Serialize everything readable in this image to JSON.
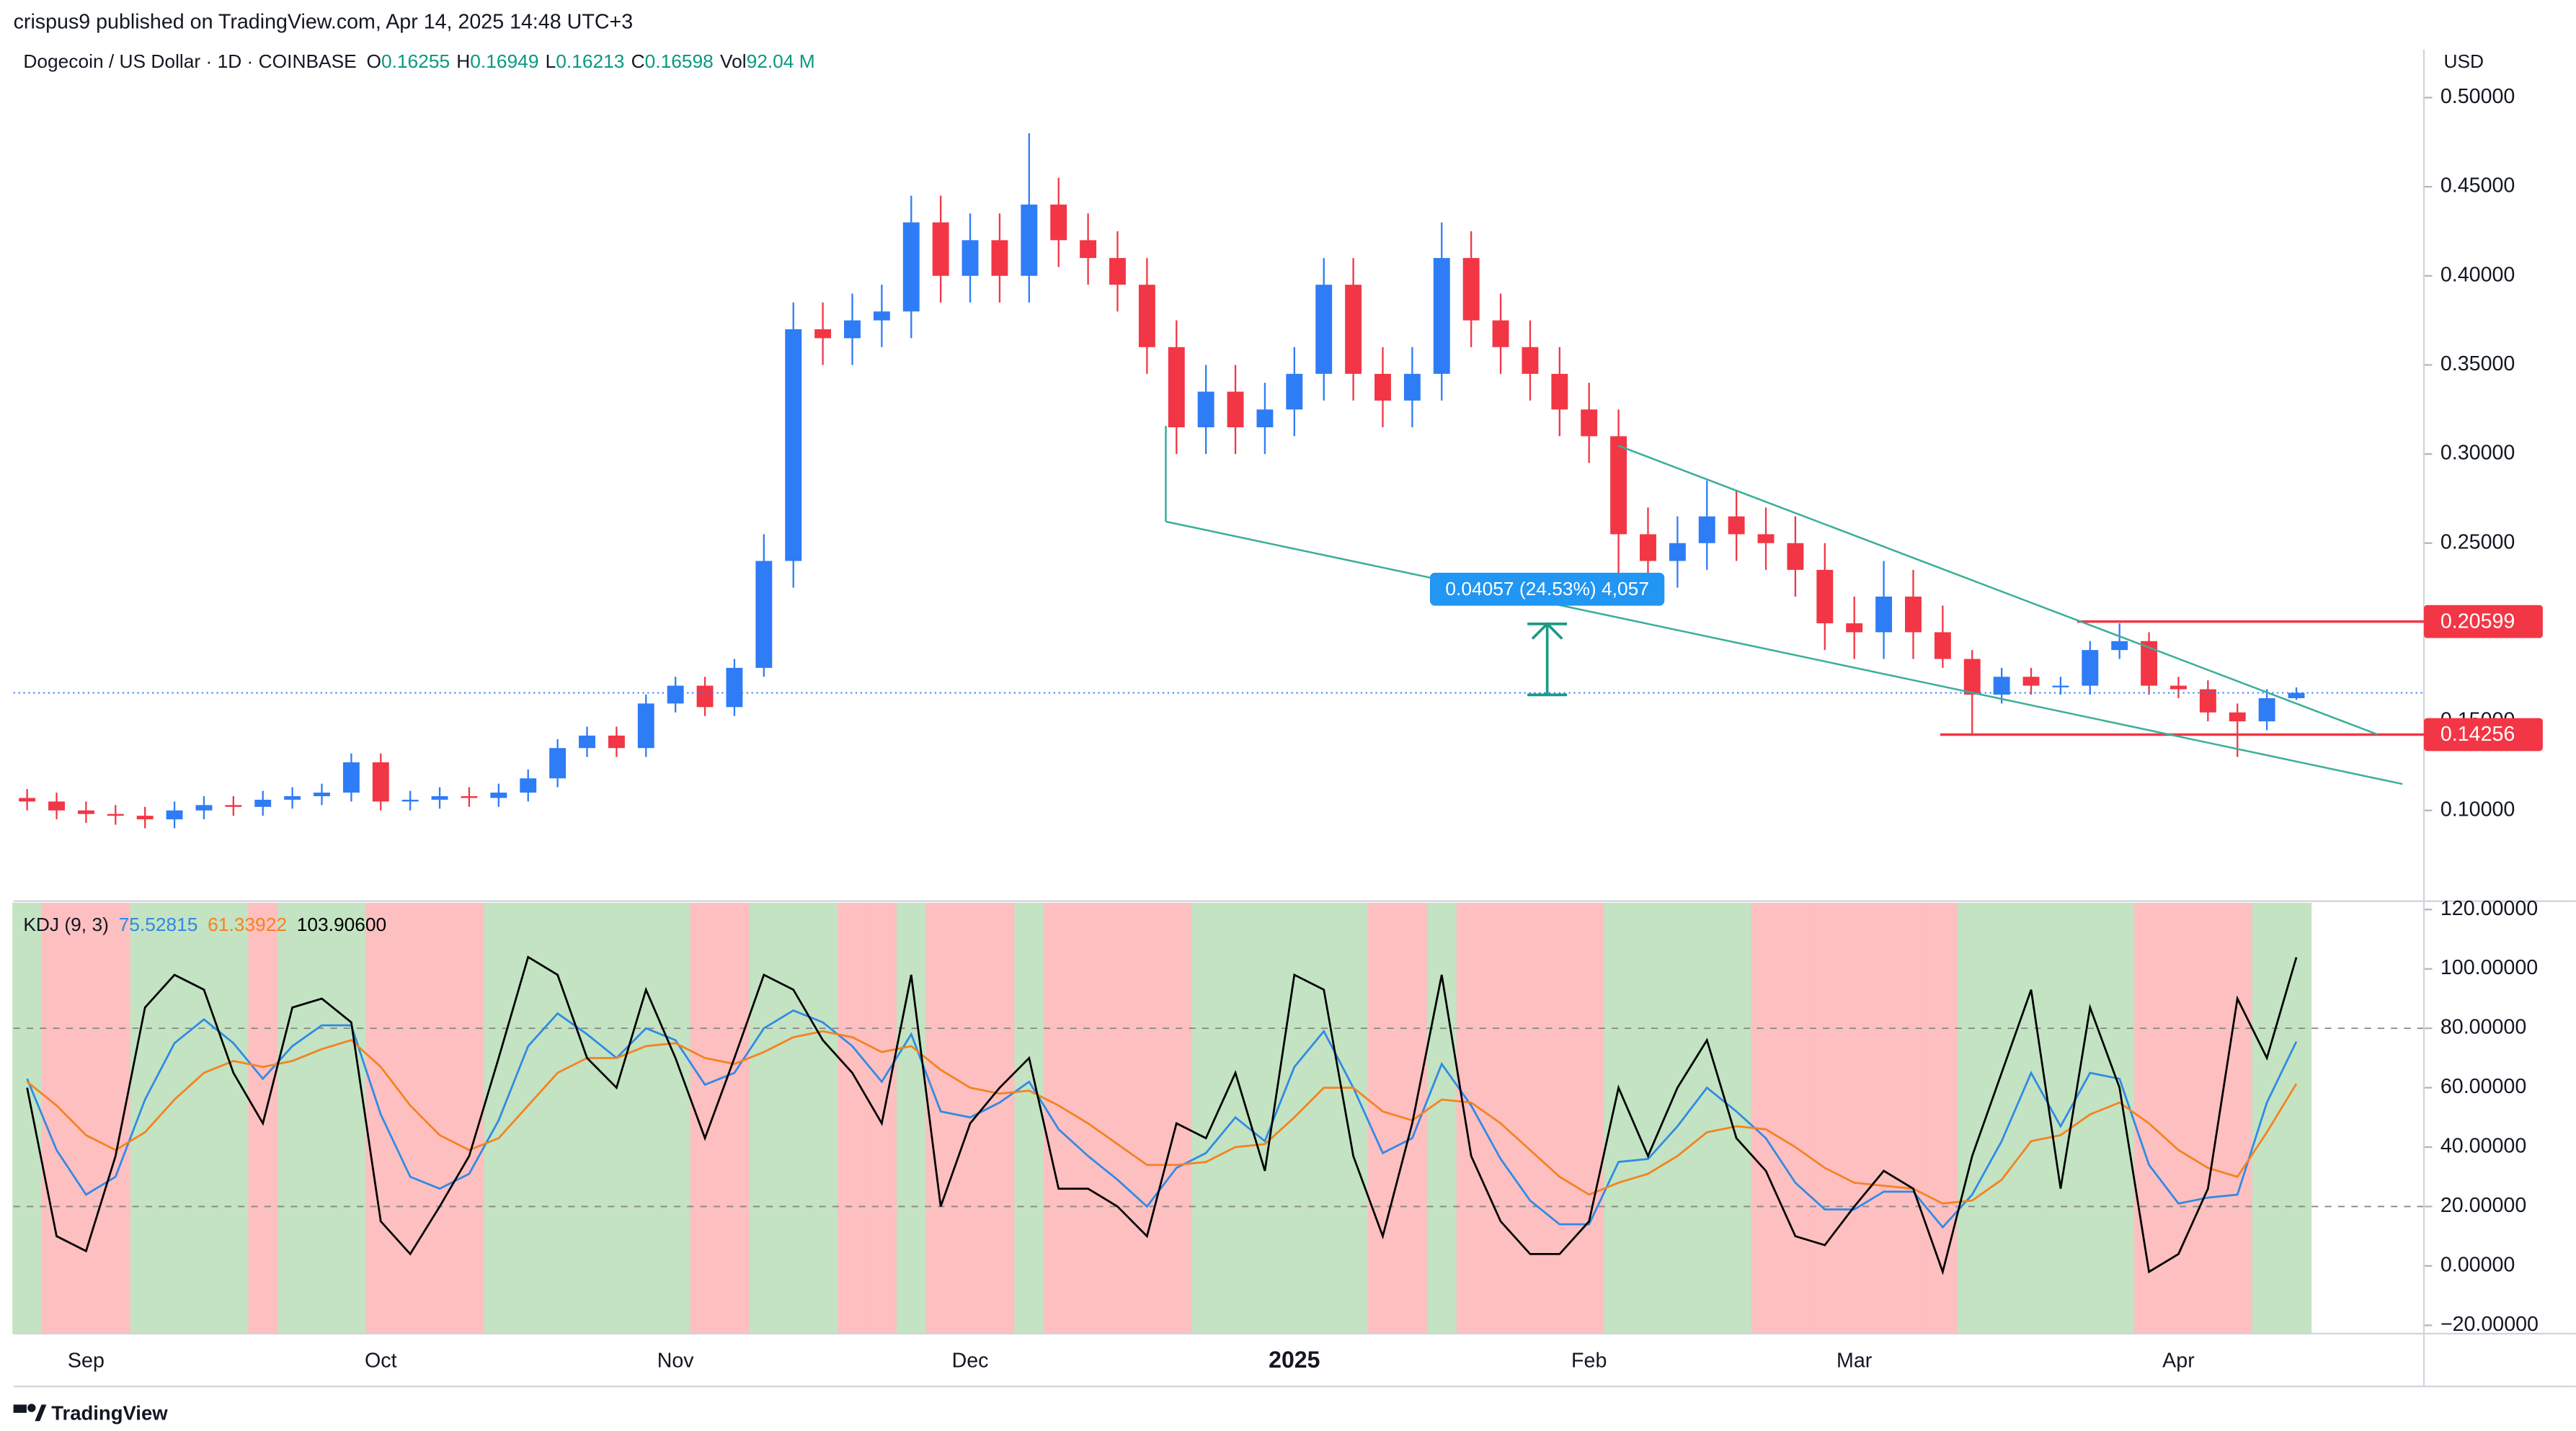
{
  "header": {
    "publisher": "crispus9 published on TradingView.com, Apr 14, 2025 14:48 UTC+3",
    "footer": "TradingView"
  },
  "chart_data": [
    {
      "type": "candlestick",
      "title": "Dogecoin / US Dollar · 1D · COINBASE",
      "currency": "USD",
      "ohlc": [
        {
          "label": "O",
          "value": 0.16255
        },
        {
          "label": "H",
          "value": 0.16949
        },
        {
          "label": "L",
          "value": 0.16213
        },
        {
          "label": "C",
          "value": 0.16598
        },
        {
          "label": "Vol",
          "value": "92.04 M"
        }
      ],
      "categories": [
        null,
        null,
        "Sep",
        null,
        null,
        null,
        null,
        null,
        null,
        null,
        null,
        null,
        "Oct",
        null,
        null,
        null,
        null,
        null,
        null,
        null,
        null,
        null,
        "Nov",
        null,
        null,
        null,
        null,
        null,
        null,
        null,
        null,
        null,
        "Dec",
        null,
        null,
        null,
        null,
        null,
        null,
        null,
        null,
        null,
        null,
        "2025",
        null,
        null,
        null,
        null,
        null,
        null,
        null,
        null,
        null,
        "Feb",
        null,
        null,
        null,
        null,
        null,
        null,
        null,
        null,
        "Mar",
        null,
        null,
        null,
        null,
        null,
        null,
        null,
        null,
        null,
        null,
        "Apr",
        null,
        null,
        null,
        null
      ],
      "open": [
        0.107,
        0.105,
        0.1,
        0.098,
        0.097,
        0.095,
        0.1,
        0.103,
        0.102,
        0.106,
        0.108,
        0.11,
        0.127,
        0.105,
        0.106,
        0.108,
        0.107,
        0.11,
        0.118,
        0.135,
        0.142,
        0.135,
        0.16,
        0.17,
        0.158,
        0.18,
        0.24,
        0.37,
        0.365,
        0.375,
        0.38,
        0.43,
        0.4,
        0.42,
        0.4,
        0.44,
        0.42,
        0.41,
        0.395,
        0.36,
        0.315,
        0.335,
        0.315,
        0.325,
        0.345,
        0.395,
        0.345,
        0.33,
        0.345,
        0.41,
        0.375,
        0.36,
        0.345,
        0.325,
        0.31,
        0.255,
        0.24,
        0.25,
        0.265,
        0.255,
        0.25,
        0.235,
        0.205,
        0.2,
        0.22,
        0.2,
        0.185,
        0.165,
        0.175,
        0.17,
        0.17,
        0.19,
        0.195,
        0.17,
        0.168,
        0.155,
        0.15,
        0.163
      ],
      "high": [
        0.112,
        0.11,
        0.105,
        0.103,
        0.102,
        0.105,
        0.108,
        0.108,
        0.111,
        0.113,
        0.115,
        0.132,
        0.132,
        0.111,
        0.113,
        0.113,
        0.115,
        0.123,
        0.14,
        0.147,
        0.147,
        0.165,
        0.175,
        0.175,
        0.185,
        0.255,
        0.385,
        0.385,
        0.39,
        0.395,
        0.445,
        0.445,
        0.435,
        0.435,
        0.48,
        0.455,
        0.435,
        0.425,
        0.41,
        0.375,
        0.35,
        0.35,
        0.34,
        0.36,
        0.41,
        0.41,
        0.36,
        0.36,
        0.43,
        0.425,
        0.39,
        0.375,
        0.36,
        0.34,
        0.325,
        0.27,
        0.265,
        0.285,
        0.28,
        0.27,
        0.265,
        0.25,
        0.22,
        0.24,
        0.235,
        0.215,
        0.19,
        0.18,
        0.18,
        0.175,
        0.195,
        0.205,
        0.2,
        0.175,
        0.173,
        0.16,
        0.168,
        0.169
      ],
      "low": [
        0.1,
        0.095,
        0.093,
        0.092,
        0.09,
        0.09,
        0.095,
        0.097,
        0.097,
        0.101,
        0.103,
        0.105,
        0.1,
        0.1,
        0.101,
        0.102,
        0.102,
        0.105,
        0.113,
        0.13,
        0.13,
        0.13,
        0.155,
        0.153,
        0.153,
        0.175,
        0.225,
        0.35,
        0.35,
        0.36,
        0.365,
        0.385,
        0.385,
        0.385,
        0.385,
        0.405,
        0.395,
        0.38,
        0.345,
        0.3,
        0.3,
        0.3,
        0.3,
        0.31,
        0.33,
        0.33,
        0.315,
        0.315,
        0.33,
        0.36,
        0.345,
        0.33,
        0.31,
        0.295,
        0.215,
        0.225,
        0.225,
        0.235,
        0.24,
        0.235,
        0.22,
        0.19,
        0.185,
        0.185,
        0.185,
        0.18,
        0.143,
        0.16,
        0.165,
        0.165,
        0.165,
        0.185,
        0.165,
        0.163,
        0.15,
        0.13,
        0.145,
        0.162
      ],
      "close": [
        0.105,
        0.1,
        0.098,
        0.097,
        0.095,
        0.1,
        0.103,
        0.102,
        0.106,
        0.108,
        0.11,
        0.127,
        0.105,
        0.106,
        0.108,
        0.107,
        0.11,
        0.118,
        0.135,
        0.142,
        0.135,
        0.16,
        0.17,
        0.158,
        0.18,
        0.24,
        0.37,
        0.365,
        0.375,
        0.38,
        0.43,
        0.4,
        0.42,
        0.4,
        0.44,
        0.42,
        0.41,
        0.395,
        0.36,
        0.315,
        0.335,
        0.315,
        0.325,
        0.345,
        0.395,
        0.345,
        0.33,
        0.345,
        0.41,
        0.375,
        0.36,
        0.345,
        0.325,
        0.31,
        0.255,
        0.24,
        0.25,
        0.265,
        0.255,
        0.25,
        0.235,
        0.205,
        0.2,
        0.22,
        0.2,
        0.185,
        0.165,
        0.175,
        0.17,
        0.17,
        0.19,
        0.195,
        0.17,
        0.168,
        0.155,
        0.15,
        0.163,
        0.166
      ],
      "up_color": "#2e7cf6",
      "down_color": "#f23645",
      "ylim": [
        0.05,
        0.527
      ],
      "yticks": [
        {
          "value": 0.1,
          "label": "0.10000"
        },
        {
          "value": 0.15,
          "label": "0.15000"
        },
        {
          "value": 0.2,
          "label": "0.20000"
        },
        {
          "value": 0.25,
          "label": "0.25000"
        },
        {
          "value": 0.3,
          "label": "0.30000"
        },
        {
          "value": 0.35,
          "label": "0.35000"
        },
        {
          "value": 0.4,
          "label": "0.40000"
        },
        {
          "value": 0.45,
          "label": "0.45000"
        },
        {
          "value": 0.5,
          "label": "0.50000"
        }
      ],
      "price_lines": [
        {
          "value": 0.20599,
          "color": "#f23645"
        },
        {
          "value": 0.14256,
          "color": "#f23645"
        }
      ],
      "annotation": "0.04057 (24.53%) 4,057"
    },
    {
      "type": "line",
      "title": "KDJ (9, 3)",
      "series": [
        {
          "color": "#2f8ae6",
          "values": [
            63,
            39,
            24,
            30,
            56,
            75,
            83,
            75,
            63,
            74,
            81,
            81,
            51,
            30,
            26,
            31,
            49,
            74,
            85,
            78,
            70,
            80,
            76,
            61,
            65,
            80,
            86,
            82,
            74,
            62,
            78,
            52,
            50,
            55,
            62,
            46,
            37,
            29,
            20,
            33,
            38,
            50,
            42,
            67,
            79,
            60,
            38,
            43,
            68,
            54,
            36,
            22,
            14,
            14,
            35,
            36,
            47,
            60,
            52,
            43,
            28,
            19,
            19,
            25,
            25,
            13,
            24,
            42,
            65,
            47,
            65,
            63,
            34,
            21,
            23,
            24,
            55,
            75.52815
          ]
        },
        {
          "color": "#f5821f",
          "values": [
            62,
            54,
            44,
            39,
            45,
            56,
            65,
            69,
            67,
            69,
            73,
            76,
            67,
            54,
            44,
            39,
            43,
            54,
            65,
            70,
            70,
            74,
            75,
            70,
            68,
            72,
            77,
            79,
            77,
            72,
            74,
            66,
            60,
            58,
            59,
            54,
            48,
            41,
            34,
            34,
            35,
            40,
            41,
            50,
            60,
            60,
            52,
            49,
            56,
            55,
            48,
            39,
            30,
            24,
            28,
            31,
            37,
            45,
            47,
            46,
            40,
            33,
            28,
            27,
            26,
            21,
            22,
            29,
            42,
            44,
            51,
            55,
            48,
            39,
            33,
            30,
            45,
            61.33922
          ]
        },
        {
          "color": "#000000",
          "legend_label": "103.90600",
          "values": [
            60,
            10,
            5,
            37,
            87,
            98,
            93,
            65,
            48,
            87,
            90,
            82,
            15,
            4,
            20,
            37,
            70,
            104,
            98,
            70,
            60,
            93,
            70,
            43,
            70,
            98,
            93,
            76,
            65,
            48,
            98,
            20,
            48,
            60,
            70,
            26,
            26,
            20,
            10,
            48,
            43,
            65,
            32,
            98,
            93,
            37,
            10,
            48,
            98,
            37,
            15,
            4,
            4,
            15,
            60,
            37,
            60,
            76,
            43,
            32,
            10,
            7,
            20,
            32,
            26,
            -2,
            37,
            65,
            93,
            26,
            87,
            60,
            -2,
            4,
            26,
            90,
            70,
            103.906
          ]
        }
      ],
      "bg_up": "#c3e3c2",
      "bg_down": "#fdbfc0",
      "ylim": [
        -22.8,
        122.8
      ],
      "yticks": [
        {
          "value": 120,
          "label": "120.00000"
        },
        {
          "value": 100,
          "label": "100.00000"
        },
        {
          "value": 80,
          "label": "80.00000"
        },
        {
          "value": 60,
          "label": "60.00000"
        },
        {
          "value": 40,
          "label": "40.00000"
        },
        {
          "value": 20,
          "label": "20.00000"
        },
        {
          "value": 0,
          "label": "0.00000"
        },
        {
          "value": -20,
          "label": "−20.00000"
        }
      ],
      "hlines": [
        80,
        20
      ]
    }
  ]
}
